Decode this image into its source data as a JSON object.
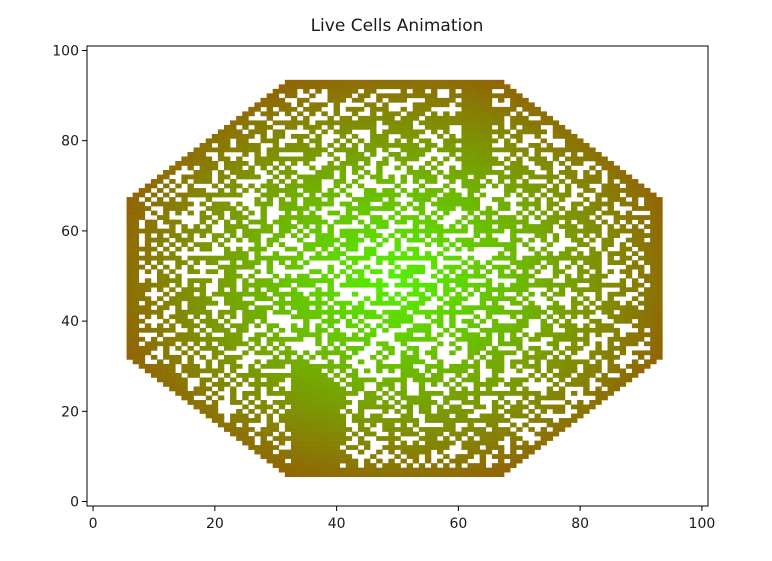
{
  "chart_data": {
    "type": "scatter",
    "title": "Live Cells Animation",
    "xlabel": "",
    "ylabel": "",
    "xlim": [
      -1,
      101
    ],
    "ylim": [
      -1,
      101
    ],
    "xticks": [
      0,
      20,
      40,
      60,
      80,
      100
    ],
    "yticks": [
      0,
      20,
      40,
      60,
      80,
      100
    ],
    "grid": false,
    "legend": "none",
    "colors": {
      "center": "#55ee00",
      "edge": "#9a5206"
    },
    "series": [
      {
        "description": "live cells on a 100x100 grid, octagonal region",
        "region": {
          "x_range": [
            6,
            93
          ],
          "y_range": [
            6,
            93
          ],
          "corner_cut": 26
        },
        "solid_vertical_bands": [
          {
            "x": [
              33,
              37
            ],
            "y": [
              6,
              30
            ]
          },
          {
            "x": [
              61,
              65
            ],
            "y": [
              73,
              93
            ]
          },
          {
            "x": [
              38,
              40
            ],
            "y": [
              6,
              26
            ]
          }
        ],
        "color_gradient": "radial: green at center, brown at edges"
      }
    ]
  }
}
